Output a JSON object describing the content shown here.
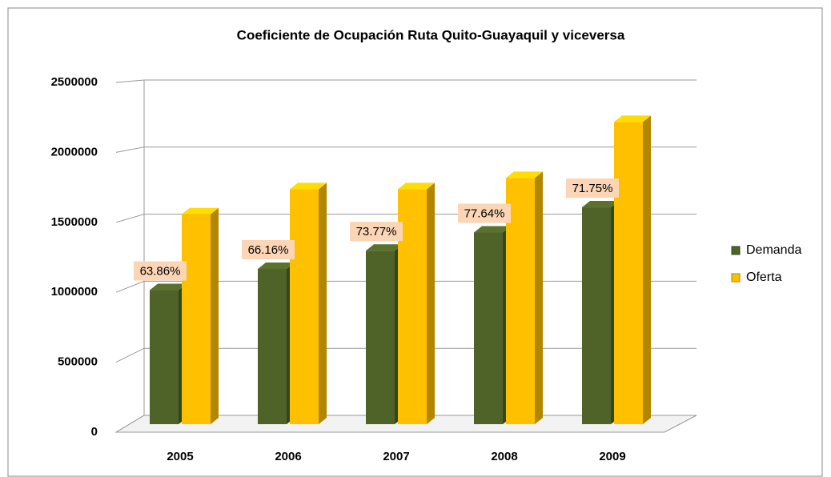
{
  "chart_data": {
    "type": "bar3d",
    "title": "Coeficiente de Ocupación Ruta Quito-Guayaquil y viceversa",
    "categories": [
      "2005",
      "2006",
      "2007",
      "2008",
      "2009"
    ],
    "series": [
      {
        "name": "Demanda",
        "color": "#4f6228",
        "values": [
          958000,
          1110000,
          1240000,
          1370000,
          1550000
        ]
      },
      {
        "name": "Oferta",
        "color": "#ffc000",
        "values": [
          1500000,
          1680000,
          1680000,
          1760000,
          2160000
        ]
      }
    ],
    "occupancy_labels": [
      "63.86%",
      "66.16%",
      "73.77%",
      "77.64%",
      "71.75%"
    ],
    "ylim": [
      0,
      2500000
    ],
    "yticks": [
      0,
      500000,
      1000000,
      1500000,
      2000000,
      2500000
    ],
    "grid": true,
    "legend": "right"
  }
}
